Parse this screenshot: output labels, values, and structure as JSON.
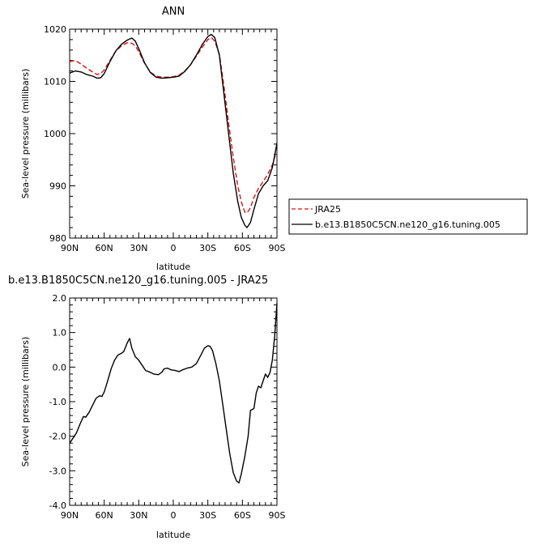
{
  "chart_data": [
    {
      "type": "line",
      "title": "ANN",
      "xlabel": "latitude",
      "ylabel": "Sea-level pressure (millibars)",
      "xlim": [
        90,
        -90
      ],
      "ylim": [
        980,
        1020
      ],
      "x_ticks": [
        90,
        60,
        30,
        0,
        -30,
        -60,
        -90
      ],
      "x_tick_labels": [
        "90N",
        "60N",
        "30N",
        "0",
        "30S",
        "60S",
        "90S"
      ],
      "y_ticks": [
        980,
        990,
        1000,
        1010,
        1020
      ],
      "y_tick_labels": [
        "980",
        "990",
        "1000",
        "1010",
        "1020"
      ],
      "legend_position": "right",
      "series": [
        {
          "name": "JRA25",
          "color": "#dd1111",
          "dash": "dashed",
          "points": [
            [
              90,
              1013.8
            ],
            [
              85,
              1014.0
            ],
            [
              80,
              1013.3
            ],
            [
              75,
              1012.5
            ],
            [
              70,
              1011.8
            ],
            [
              66,
              1011.3
            ],
            [
              63,
              1011.5
            ],
            [
              60,
              1012.2
            ],
            [
              55,
              1014.0
            ],
            [
              50,
              1015.8
            ],
            [
              45,
              1016.8
            ],
            [
              40,
              1017.4
            ],
            [
              36,
              1017.3
            ],
            [
              33,
              1016.8
            ],
            [
              30,
              1015.7
            ],
            [
              25,
              1013.5
            ],
            [
              20,
              1011.8
            ],
            [
              15,
              1011.0
            ],
            [
              10,
              1010.8
            ],
            [
              5,
              1010.8
            ],
            [
              0,
              1010.9
            ],
            [
              -5,
              1011.2
            ],
            [
              -10,
              1012.0
            ],
            [
              -15,
              1013.2
            ],
            [
              -20,
              1014.8
            ],
            [
              -25,
              1016.5
            ],
            [
              -30,
              1018.0
            ],
            [
              -33,
              1018.4
            ],
            [
              -36,
              1017.7
            ],
            [
              -40,
              1015.2
            ],
            [
              -44,
              1009.0
            ],
            [
              -48,
              1002.0
            ],
            [
              -52,
              995.5
            ],
            [
              -56,
              990.0
            ],
            [
              -59,
              987.0
            ],
            [
              -62,
              985.0
            ],
            [
              -64,
              984.8
            ],
            [
              -67,
              985.8
            ],
            [
              -70,
              987.8
            ],
            [
              -74,
              989.5
            ],
            [
              -78,
              990.8
            ],
            [
              -82,
              992.2
            ],
            [
              -86,
              994.0
            ],
            [
              -88,
              995.5
            ],
            [
              -90,
              996.2
            ]
          ]
        },
        {
          "name": "b.e13.B1850C5CN.ne120_g16.tuning.005",
          "color": "#000000",
          "dash": "solid",
          "points": [
            [
              90,
              1011.6
            ],
            [
              85,
              1012.0
            ],
            [
              80,
              1011.8
            ],
            [
              75,
              1011.3
            ],
            [
              70,
              1011.0
            ],
            [
              66,
              1010.6
            ],
            [
              63,
              1010.7
            ],
            [
              60,
              1011.5
            ],
            [
              55,
              1013.8
            ],
            [
              50,
              1015.8
            ],
            [
              45,
              1017.1
            ],
            [
              40,
              1017.9
            ],
            [
              36,
              1018.3
            ],
            [
              33,
              1017.7
            ],
            [
              30,
              1016.3
            ],
            [
              25,
              1013.6
            ],
            [
              20,
              1011.7
            ],
            [
              15,
              1010.8
            ],
            [
              10,
              1010.6
            ],
            [
              5,
              1010.7
            ],
            [
              0,
              1010.8
            ],
            [
              -5,
              1011.0
            ],
            [
              -10,
              1011.9
            ],
            [
              -15,
              1013.2
            ],
            [
              -20,
              1015.0
            ],
            [
              -25,
              1017.0
            ],
            [
              -30,
              1018.6
            ],
            [
              -33,
              1019.0
            ],
            [
              -36,
              1018.4
            ],
            [
              -40,
              1015.0
            ],
            [
              -44,
              1007.5
            ],
            [
              -48,
              1000.0
            ],
            [
              -52,
              992.5
            ],
            [
              -56,
              987.0
            ],
            [
              -59,
              984.0
            ],
            [
              -62,
              982.5
            ],
            [
              -64,
              982.0
            ],
            [
              -67,
              983.0
            ],
            [
              -70,
              985.5
            ],
            [
              -74,
              988.5
            ],
            [
              -78,
              990.0
            ],
            [
              -82,
              991.0
            ],
            [
              -86,
              993.5
            ],
            [
              -88,
              995.8
            ],
            [
              -90,
              998.2
            ]
          ]
        }
      ]
    },
    {
      "type": "line",
      "title": "b.e13.B1850C5CN.ne120_g16.tuning.005  -  JRA25",
      "xlabel": "latitude",
      "ylabel": "Sea-level pressure (millibars)",
      "xlim": [
        90,
        -90
      ],
      "ylim": [
        -4.0,
        2.0
      ],
      "x_ticks": [
        90,
        60,
        30,
        0,
        -30,
        -60,
        -90
      ],
      "x_tick_labels": [
        "90N",
        "60N",
        "30N",
        "0",
        "30S",
        "60S",
        "90S"
      ],
      "y_ticks": [
        -4,
        -3,
        -2,
        -1,
        0,
        1,
        2
      ],
      "y_tick_labels": [
        "-4.0",
        "-3.0",
        "-2.0",
        "-1.0",
        "0.0",
        "1.0",
        "2.0"
      ],
      "series": [
        {
          "color": "#000000",
          "dash": "solid",
          "points": [
            [
              90,
              -2.2
            ],
            [
              87,
              -2.05
            ],
            [
              84,
              -1.9
            ],
            [
              81,
              -1.65
            ],
            [
              78,
              -1.43
            ],
            [
              76,
              -1.45
            ],
            [
              73,
              -1.3
            ],
            [
              70,
              -1.1
            ],
            [
              67,
              -0.9
            ],
            [
              64,
              -0.83
            ],
            [
              62,
              -0.85
            ],
            [
              60,
              -0.72
            ],
            [
              57,
              -0.4
            ],
            [
              54,
              -0.05
            ],
            [
              51,
              0.2
            ],
            [
              48,
              0.35
            ],
            [
              45,
              0.4
            ],
            [
              43,
              0.45
            ],
            [
              40,
              0.7
            ],
            [
              38,
              0.83
            ],
            [
              36,
              0.55
            ],
            [
              33,
              0.3
            ],
            [
              30,
              0.2
            ],
            [
              27,
              0.05
            ],
            [
              24,
              -0.1
            ],
            [
              20,
              -0.15
            ],
            [
              17,
              -0.2
            ],
            [
              13,
              -0.22
            ],
            [
              10,
              -0.15
            ],
            [
              8,
              -0.05
            ],
            [
              5,
              -0.03
            ],
            [
              2,
              -0.08
            ],
            [
              -2,
              -0.1
            ],
            [
              -5,
              -0.13
            ],
            [
              -8,
              -0.08
            ],
            [
              -12,
              -0.03
            ],
            [
              -16,
              0.0
            ],
            [
              -20,
              0.1
            ],
            [
              -24,
              0.35
            ],
            [
              -27,
              0.55
            ],
            [
              -30,
              0.62
            ],
            [
              -32,
              0.6
            ],
            [
              -34,
              0.48
            ],
            [
              -37,
              0.1
            ],
            [
              -40,
              -0.4
            ],
            [
              -43,
              -1.1
            ],
            [
              -46,
              -1.8
            ],
            [
              -49,
              -2.5
            ],
            [
              -52,
              -3.05
            ],
            [
              -55,
              -3.3
            ],
            [
              -57,
              -3.35
            ],
            [
              -59,
              -3.1
            ],
            [
              -62,
              -2.6
            ],
            [
              -65,
              -2.0
            ],
            [
              -67,
              -1.25
            ],
            [
              -70,
              -1.2
            ],
            [
              -72,
              -0.75
            ],
            [
              -74,
              -0.55
            ],
            [
              -76,
              -0.6
            ],
            [
              -78,
              -0.4
            ],
            [
              -80,
              -0.2
            ],
            [
              -82,
              -0.3
            ],
            [
              -84,
              -0.15
            ],
            [
              -86,
              0.2
            ],
            [
              -88,
              0.9
            ],
            [
              -90,
              1.85
            ]
          ]
        }
      ]
    }
  ]
}
